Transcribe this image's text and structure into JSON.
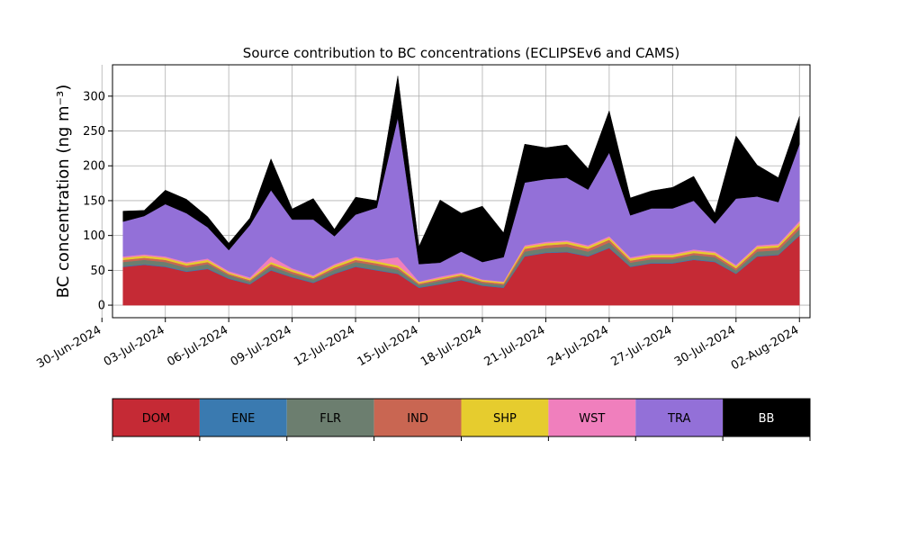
{
  "chart_data": {
    "type": "area",
    "title": "Source contribution to BC concentrations (ECLIPSEv6 and CAMS)",
    "ylabel": "BC concentration (ng m⁻³)",
    "xlabel": "",
    "ylim": [
      -18,
      345
    ],
    "xlim": [
      "2024-06-30T12:00",
      "2024-08-02T12:00"
    ],
    "y_ticks": [
      0,
      50,
      100,
      150,
      200,
      250,
      300
    ],
    "x_ticks": [
      "2024-06-30",
      "2024-07-03",
      "2024-07-06",
      "2024-07-09",
      "2024-07-12",
      "2024-07-15",
      "2024-07-18",
      "2024-07-21",
      "2024-07-24",
      "2024-07-27",
      "2024-07-30",
      "2024-08-02"
    ],
    "x_tick_labels": [
      "30-Jun-2024",
      "03-Jul-2024",
      "06-Jul-2024",
      "09-Jul-2024",
      "12-Jul-2024",
      "15-Jul-2024",
      "18-Jul-2024",
      "21-Jul-2024",
      "24-Jul-2024",
      "27-Jul-2024",
      "30-Jul-2024",
      "02-Aug-2024"
    ],
    "grid": true,
    "stacked": true,
    "x": [
      "2024-07-01",
      "2024-07-02",
      "2024-07-03",
      "2024-07-04",
      "2024-07-05",
      "2024-07-06",
      "2024-07-07",
      "2024-07-08",
      "2024-07-09",
      "2024-07-10",
      "2024-07-11",
      "2024-07-12",
      "2024-07-13",
      "2024-07-14",
      "2024-07-15",
      "2024-07-16",
      "2024-07-17",
      "2024-07-18",
      "2024-07-19",
      "2024-07-20",
      "2024-07-21",
      "2024-07-22",
      "2024-07-23",
      "2024-07-24",
      "2024-07-25",
      "2024-07-26",
      "2024-07-27",
      "2024-07-28",
      "2024-07-29",
      "2024-07-30",
      "2024-07-31",
      "2024-08-01",
      "2024-08-02"
    ],
    "series": [
      {
        "name": "DOM",
        "color": "#c52a35",
        "values": [
          55,
          58,
          55,
          48,
          52,
          38,
          30,
          50,
          40,
          32,
          45,
          55,
          50,
          45,
          25,
          30,
          36,
          28,
          25,
          70,
          75,
          76,
          70,
          82,
          55,
          60,
          60,
          65,
          62,
          45,
          70,
          72,
          100
        ]
      },
      {
        "name": "ENE",
        "color": "#3a7ab0",
        "values": [
          1,
          1,
          1,
          1,
          1,
          1,
          1,
          1,
          1,
          1,
          1,
          1,
          1,
          1,
          1,
          1,
          1,
          1,
          1,
          1,
          1,
          1,
          1,
          1,
          1,
          1,
          1,
          1,
          1,
          1,
          1,
          1,
          1
        ]
      },
      {
        "name": "FLR",
        "color": "#6c7e6f",
        "values": [
          6,
          6,
          6,
          5,
          6,
          4,
          3,
          5,
          4,
          4,
          5,
          6,
          6,
          5,
          3,
          4,
          4,
          3,
          3,
          6,
          6,
          7,
          6,
          7,
          5,
          5,
          5,
          6,
          6,
          4,
          6,
          6,
          8
        ]
      },
      {
        "name": "IND",
        "color": "#c96652",
        "values": [
          3,
          3,
          3,
          3,
          3,
          2,
          2,
          3,
          3,
          2,
          3,
          3,
          3,
          3,
          2,
          2,
          2,
          2,
          2,
          4,
          4,
          4,
          4,
          4,
          3,
          3,
          3,
          3,
          3,
          3,
          4,
          4,
          5
        ]
      },
      {
        "name": "SHP",
        "color": "#e6cc2e",
        "values": [
          3,
          3,
          3,
          3,
          3,
          2,
          2,
          3,
          3,
          2,
          3,
          3,
          3,
          3,
          2,
          2,
          2,
          2,
          2,
          3,
          3,
          3,
          3,
          3,
          3,
          3,
          3,
          3,
          3,
          3,
          3,
          3,
          4
        ]
      },
      {
        "name": "WST",
        "color": "#f07fbd",
        "values": [
          2,
          2,
          2,
          2,
          2,
          2,
          2,
          8,
          2,
          2,
          2,
          2,
          2,
          12,
          1,
          2,
          2,
          1,
          1,
          2,
          2,
          2,
          2,
          2,
          2,
          2,
          2,
          2,
          2,
          2,
          2,
          2,
          3
        ]
      },
      {
        "name": "TRA",
        "color": "#9370d8",
        "values": [
          50,
          55,
          75,
          70,
          45,
          30,
          75,
          95,
          70,
          80,
          40,
          60,
          75,
          200,
          25,
          20,
          30,
          25,
          35,
          90,
          90,
          90,
          80,
          120,
          60,
          65,
          65,
          70,
          40,
          95,
          70,
          60,
          110
        ]
      },
      {
        "name": "BB",
        "color": "#000000",
        "values": [
          15,
          8,
          20,
          20,
          15,
          10,
          10,
          45,
          15,
          30,
          10,
          25,
          10,
          60,
          25,
          90,
          55,
          80,
          35,
          55,
          45,
          47,
          30,
          60,
          25,
          25,
          30,
          35,
          15,
          90,
          45,
          35,
          40
        ]
      }
    ]
  },
  "legend": {
    "items": [
      "DOM",
      "ENE",
      "FLR",
      "IND",
      "SHP",
      "WST",
      "TRA",
      "BB"
    ]
  }
}
